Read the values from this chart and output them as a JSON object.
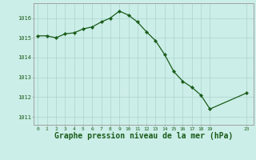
{
  "x": [
    0,
    1,
    2,
    3,
    4,
    5,
    6,
    7,
    8,
    9,
    10,
    11,
    12,
    13,
    14,
    15,
    16,
    17,
    18,
    19,
    23
  ],
  "y": [
    1015.1,
    1015.1,
    1015.0,
    1015.2,
    1015.25,
    1015.45,
    1015.55,
    1015.8,
    1016.0,
    1016.35,
    1016.15,
    1015.8,
    1015.3,
    1014.85,
    1014.15,
    1013.3,
    1012.8,
    1012.5,
    1012.1,
    1011.4,
    1012.2
  ],
  "line_color": "#1a5c1a",
  "marker": "D",
  "marker_size": 2.2,
  "bg_color": "#cceee8",
  "grid_color": "#aad4cc",
  "xlabel": "Graphe pression niveau de la mer (hPa)",
  "xlabel_fontsize": 7,
  "xlabel_color": "#1a5c1a",
  "ytick_labels": [
    "1011",
    "1012",
    "1013",
    "1014",
    "1015",
    "1016"
  ],
  "ytick_values": [
    1011,
    1012,
    1013,
    1014,
    1015,
    1016
  ],
  "xtick_values": [
    0,
    1,
    2,
    3,
    4,
    5,
    6,
    7,
    8,
    9,
    10,
    11,
    12,
    13,
    14,
    15,
    16,
    17,
    18,
    19,
    23
  ],
  "ylim": [
    1010.6,
    1016.75
  ],
  "xlim": [
    -0.5,
    23.8
  ]
}
